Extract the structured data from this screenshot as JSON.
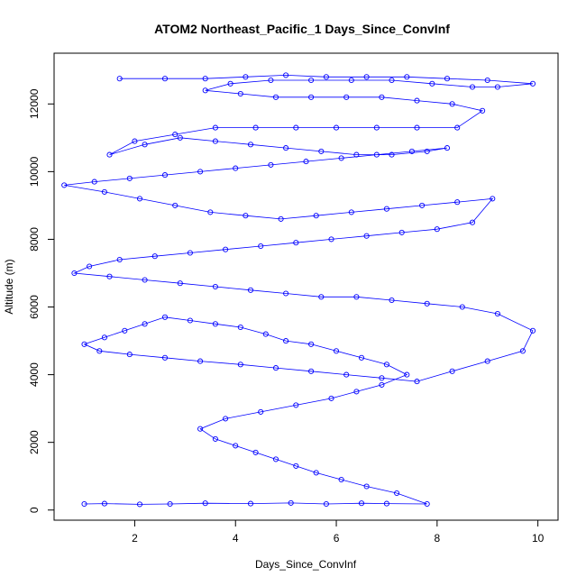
{
  "chart_data": {
    "type": "line",
    "title": "ATOM2 Northeast_Pacific_1 Days_Since_ConvInf",
    "xlabel": "Days_Since_ConvInf",
    "ylabel": "Altitude (m)",
    "xlim": [
      0.4,
      10.4
    ],
    "ylim": [
      -300,
      13500
    ],
    "xticks": [
      2,
      4,
      6,
      8,
      10
    ],
    "yticks": [
      0,
      2000,
      4000,
      6000,
      8000,
      10000,
      12000
    ],
    "grid": false,
    "series_color": "#0000ff",
    "marker": "open-circle",
    "series": [
      {
        "x": [
          1.0,
          1.4,
          2.1,
          2.7,
          3.4,
          4.3,
          5.1,
          5.8,
          6.5,
          7.0,
          7.8,
          7.2,
          6.6,
          6.1,
          5.6,
          5.2,
          4.8,
          4.4,
          4.0,
          3.6,
          3.3,
          3.8,
          4.5,
          5.2,
          5.9,
          6.4,
          6.9,
          7.4,
          7.0,
          6.5,
          6.0,
          5.5,
          5.0,
          4.6,
          4.1,
          3.6,
          3.1,
          2.6,
          2.2,
          1.8,
          1.4,
          1.0,
          1.3,
          1.9,
          2.6,
          3.3,
          4.1,
          4.8,
          5.5,
          6.2,
          6.9,
          7.6,
          8.3,
          9.0,
          9.7,
          9.9,
          9.2,
          8.5,
          7.8,
          7.1,
          6.4,
          5.7,
          5.0,
          4.3,
          3.6,
          2.9,
          2.2,
          1.5,
          0.8,
          1.1,
          1.7,
          2.4,
          3.1,
          3.8,
          4.5,
          5.2,
          5.9,
          6.6,
          7.3,
          8.0,
          8.7,
          9.1,
          8.4,
          7.7,
          7.0,
          6.3,
          5.6,
          4.9,
          4.2,
          3.5,
          2.8,
          2.1,
          1.4,
          0.6,
          1.2,
          1.9,
          2.6,
          3.3,
          4.0,
          4.7,
          5.4,
          6.1,
          6.8,
          7.5,
          8.2,
          7.8,
          7.1,
          6.4,
          5.7,
          5.0,
          4.3,
          3.6,
          2.9,
          2.2,
          1.5,
          2.0,
          2.8,
          3.6,
          4.4,
          5.2,
          6.0,
          6.8,
          7.6,
          8.4,
          8.9,
          8.3,
          7.6,
          6.9,
          6.2,
          5.5,
          4.8,
          4.1,
          3.4,
          3.9,
          4.7,
          5.5,
          6.3,
          7.1,
          7.9,
          8.7,
          9.2,
          9.9,
          9.0,
          8.2,
          7.4,
          6.6,
          5.8,
          5.0,
          4.2,
          3.4,
          2.6,
          1.7
        ],
        "y": [
          180,
          190,
          170,
          180,
          200,
          190,
          210,
          180,
          200,
          190,
          180,
          500,
          700,
          900,
          1100,
          1300,
          1500,
          1700,
          1900,
          2100,
          2400,
          2700,
          2900,
          3100,
          3300,
          3500,
          3700,
          4000,
          4300,
          4500,
          4700,
          4900,
          5000,
          5200,
          5400,
          5500,
          5600,
          5700,
          5500,
          5300,
          5100,
          4900,
          4700,
          4600,
          4500,
          4400,
          4300,
          4200,
          4100,
          4000,
          3900,
          3800,
          4100,
          4400,
          4700,
          5300,
          5800,
          6000,
          6100,
          6200,
          6300,
          6300,
          6400,
          6500,
          6600,
          6700,
          6800,
          6900,
          7000,
          7200,
          7400,
          7500,
          7600,
          7700,
          7800,
          7900,
          8000,
          8100,
          8200,
          8300,
          8500,
          9200,
          9100,
          9000,
          8900,
          8800,
          8700,
          8600,
          8700,
          8800,
          9000,
          9200,
          9400,
          9600,
          9700,
          9800,
          9900,
          10000,
          10100,
          10200,
          10300,
          10400,
          10500,
          10600,
          10700,
          10600,
          10500,
          10500,
          10600,
          10700,
          10800,
          10900,
          11000,
          10800,
          10500,
          10900,
          11100,
          11300,
          11300,
          11300,
          11300,
          11300,
          11300,
          11300,
          11800,
          12000,
          12100,
          12200,
          12200,
          12200,
          12200,
          12300,
          12400,
          12600,
          12700,
          12700,
          12700,
          12700,
          12600,
          12500,
          12500,
          12600,
          12700,
          12750,
          12800,
          12800,
          12800,
          12850,
          12800,
          12750,
          12750,
          12750
        ]
      }
    ]
  }
}
